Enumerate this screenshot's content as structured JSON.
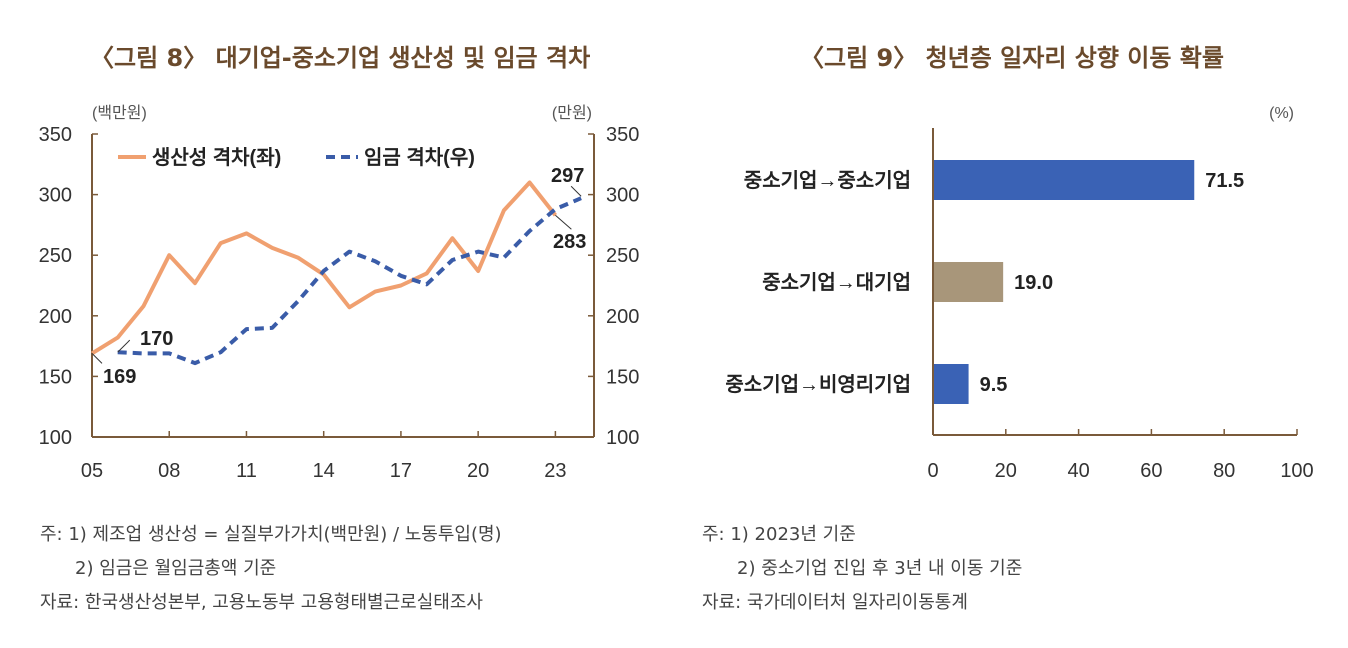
{
  "chart_data": [
    {
      "type": "line",
      "title": "〈그림 8〉 대기업-중소기업 생산성 및 임금 격차",
      "left_unit": "(백만원)",
      "right_unit": "(만원)",
      "x_ticks": [
        "05",
        "08",
        "11",
        "14",
        "17",
        "20",
        "23"
      ],
      "y_ticks": [
        "350",
        "300",
        "250",
        "200",
        "150",
        "100"
      ],
      "ylim_left": [
        100,
        350
      ],
      "ylim_right": [
        100,
        350
      ],
      "xlim": [
        2005,
        2024.5
      ],
      "series": [
        {
          "name": "생산성 격차(좌)",
          "axis": "left",
          "color": "#f0a070",
          "style": "solid",
          "x": [
            2005,
            2006,
            2007,
            2008,
            2009,
            2010,
            2011,
            2012,
            2013,
            2014,
            2015,
            2016,
            2017,
            2018,
            2019,
            2020,
            2021,
            2022,
            2023
          ],
          "values": [
            169,
            182,
            208,
            250,
            227,
            260,
            268,
            256,
            248,
            234,
            207,
            220,
            225,
            235,
            264,
            237,
            287,
            310,
            283
          ]
        },
        {
          "name": "임금 격차(우)",
          "axis": "right",
          "color": "#3a5ca8",
          "style": "dashed",
          "x": [
            2006,
            2007,
            2008,
            2009,
            2010,
            2011,
            2012,
            2013,
            2014,
            2015,
            2016,
            2017,
            2018,
            2019,
            2020,
            2021,
            2022,
            2023,
            2024
          ],
          "values": [
            170,
            169,
            169,
            161,
            170,
            189,
            190,
            212,
            237,
            253,
            245,
            233,
            226,
            246,
            253,
            248,
            270,
            288,
            297
          ]
        }
      ],
      "annotations": [
        "169",
        "170",
        "297",
        "283"
      ]
    },
    {
      "type": "bar",
      "orientation": "horizontal",
      "title": "〈그림 9〉 청년층 일자리 상향 이동 확률",
      "unit": "(%)",
      "categories": [
        "중소기업→중소기업",
        "중소기업→대기업",
        "중소기업→비영리기업"
      ],
      "values": [
        71.5,
        19.0,
        9.5
      ],
      "value_labels": [
        "71.5",
        "19.0",
        "9.5"
      ],
      "colors": [
        "#3a62b5",
        "#a8967a",
        "#3a62b5"
      ],
      "x_ticks": [
        "0",
        "20",
        "40",
        "60",
        "80",
        "100"
      ],
      "xlim": [
        0,
        100
      ]
    }
  ],
  "notes_left": [
    "주: 1) 제조업 생산성 = 실질부가가치(백만원) / 노동투입(명)",
    "2) 임금은 월임금총액 기준",
    "자료: 한국생산성본부, 고용노동부 고용형태별근로실태조사"
  ],
  "notes_right": [
    "주: 1) 2023년 기준",
    "2) 중소기업 진입 후 3년 내 이동 기준",
    "자료: 국가데이터처 일자리이동통계"
  ]
}
